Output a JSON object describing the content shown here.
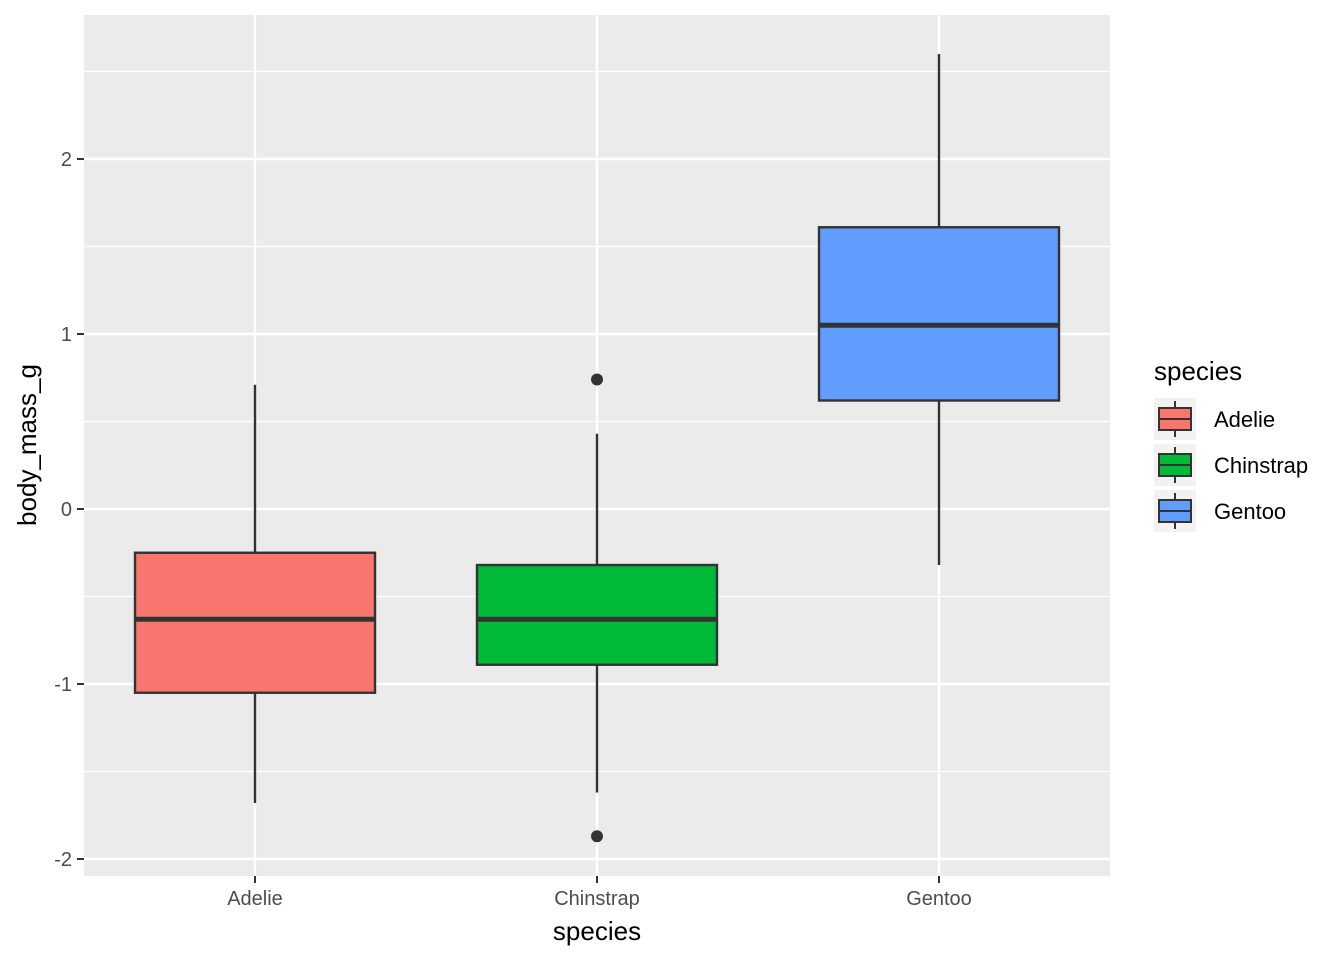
{
  "chart_data": {
    "type": "box",
    "xlabel": "species",
    "ylabel": "body_mass_g",
    "ylim": [
      -2.1,
      2.8
    ],
    "yticks": [
      -2,
      -1,
      0,
      1,
      2
    ],
    "ytick_labels": [
      "-2",
      "-1",
      "0",
      "1",
      "2"
    ],
    "categories": [
      "Adelie",
      "Chinstrap",
      "Gentoo"
    ],
    "grid": true,
    "legend": {
      "title": "species",
      "placement": "right"
    },
    "series": [
      {
        "name": "Adelie",
        "color": "#F8766D",
        "whisker_low": -1.68,
        "q1": -1.05,
        "median": -0.63,
        "q3": -0.25,
        "whisker_high": 0.71,
        "outliers": []
      },
      {
        "name": "Chinstrap",
        "color": "#00BA38",
        "whisker_low": -1.62,
        "q1": -0.89,
        "median": -0.63,
        "q3": -0.32,
        "whisker_high": 0.43,
        "outliers": [
          0.74,
          -1.87
        ]
      },
      {
        "name": "Gentoo",
        "color": "#619CFF",
        "whisker_low": -0.32,
        "q1": 0.62,
        "median": 1.05,
        "q3": 1.61,
        "whisker_high": 2.6,
        "outliers": []
      }
    ]
  }
}
